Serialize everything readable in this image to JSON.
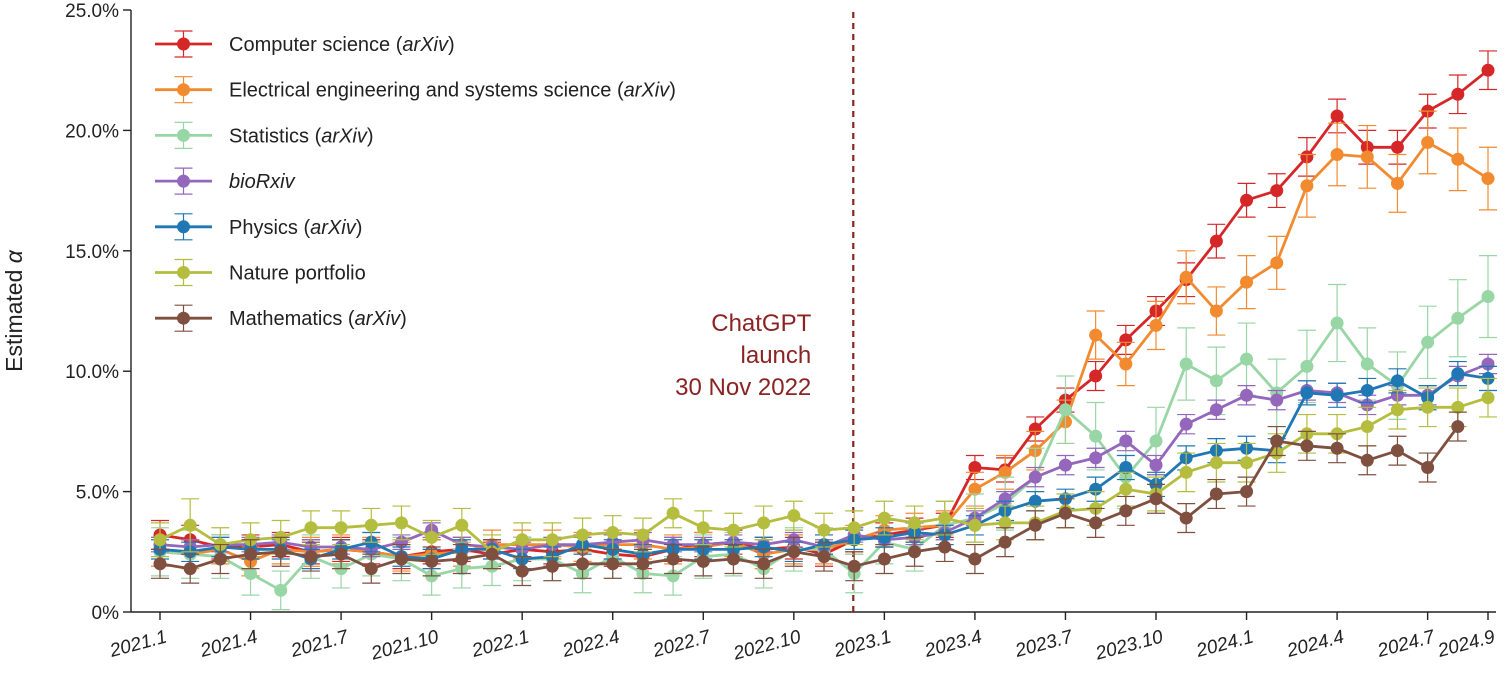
{
  "colors": {
    "computer_science": "#d62728",
    "eess": "#f28a30",
    "statistics": "#98d6a5",
    "biorxiv": "#9467bd",
    "physics": "#1f77b4",
    "nature": "#b5bd3f",
    "mathematics": "#7f4f3f",
    "annotation": "#8b2323",
    "axis": "#222222"
  },
  "chart_data": {
    "type": "line",
    "ylabel_prefix": "Estimated",
    "ylabel_symbol": "α",
    "ylim": [
      0,
      25
    ],
    "yticks": [
      "0%",
      "5.0%",
      "10.0%",
      "15.0%",
      "20.0%",
      "25.0%"
    ],
    "x_tick_labels": [
      "2021.1",
      "2021.4",
      "2021.7",
      "2021.10",
      "2022.1",
      "2022.4",
      "2022.7",
      "2022.10",
      "2023.1",
      "2023.4",
      "2023.7",
      "2023.10",
      "2024.1",
      "2024.4",
      "2024.7",
      "2024.9"
    ],
    "grid": false,
    "legend_position": "top-left",
    "annotation": {
      "lines": [
        "ChatGPT",
        "launch",
        "30 Nov 2022"
      ],
      "x_month_index": 22.97
    },
    "series": [
      {
        "key": "computer_science",
        "name_plain": "Computer science (",
        "name_italic": "arXiv",
        "name_close": ")",
        "values": [
          3.2,
          3.0,
          2.7,
          2.7,
          2.8,
          2.5,
          2.6,
          2.5,
          2.3,
          2.5,
          2.6,
          2.4,
          2.6,
          2.5,
          2.6,
          2.4,
          2.3,
          2.6,
          2.8,
          2.9,
          2.6,
          2.7,
          2.4,
          3.0,
          3.2,
          3.4,
          3.6,
          6.0,
          5.9,
          7.6,
          8.8,
          9.8,
          11.3,
          12.5,
          13.8,
          15.4,
          17.1,
          17.5,
          18.9,
          20.6,
          19.3,
          19.3,
          20.8,
          21.5,
          22.5
        ],
        "err": [
          0.6,
          0.6,
          0.5,
          0.5,
          0.5,
          0.5,
          0.5,
          0.5,
          0.5,
          0.5,
          0.5,
          0.5,
          0.5,
          0.5,
          0.5,
          0.5,
          0.5,
          0.5,
          0.5,
          0.5,
          0.5,
          0.5,
          0.5,
          0.5,
          0.5,
          0.5,
          0.5,
          0.5,
          0.5,
          0.5,
          0.5,
          0.6,
          0.6,
          0.6,
          0.7,
          0.7,
          0.7,
          0.7,
          0.8,
          0.7,
          0.7,
          0.7,
          0.7,
          0.8,
          0.8
        ]
      },
      {
        "key": "eess",
        "name_plain": "Electrical engineering and systems science (",
        "name_italic": "arXiv",
        "name_close": ")",
        "values": [
          2.5,
          2.4,
          2.6,
          2.1,
          2.6,
          2.5,
          2.6,
          2.5,
          2.3,
          2.4,
          2.5,
          2.8,
          2.8,
          2.8,
          2.7,
          2.8,
          2.8,
          2.6,
          2.7,
          2.9,
          2.4,
          2.6,
          2.6,
          3.0,
          3.4,
          3.5,
          3.6,
          5.1,
          5.8,
          6.7,
          7.9,
          11.5,
          10.3,
          11.9,
          13.9,
          12.5,
          13.7,
          14.5,
          17.7,
          19.0,
          18.9,
          17.8,
          19.5,
          18.8,
          18.0
        ],
        "err": [
          0.6,
          0.6,
          0.6,
          0.6,
          0.6,
          0.6,
          0.6,
          0.6,
          0.6,
          0.6,
          0.6,
          0.6,
          0.6,
          0.6,
          0.6,
          0.6,
          0.6,
          0.6,
          0.6,
          0.6,
          0.6,
          0.6,
          0.6,
          0.6,
          0.6,
          0.6,
          0.6,
          0.7,
          0.7,
          0.8,
          0.9,
          1.0,
          0.9,
          1.0,
          1.1,
          1.0,
          1.1,
          1.1,
          1.3,
          1.3,
          1.3,
          1.2,
          1.3,
          1.3,
          1.3
        ]
      },
      {
        "key": "statistics",
        "name_plain": "Statistics (",
        "name_italic": "arXiv",
        "name_close": ")",
        "values": [
          2.5,
          2.4,
          2.3,
          1.6,
          0.9,
          2.3,
          1.8,
          2.4,
          2.2,
          1.5,
          1.8,
          1.9,
          2.2,
          2.2,
          1.6,
          2.3,
          1.6,
          1.5,
          2.3,
          2.4,
          1.8,
          2.6,
          2.6,
          1.6,
          2.9,
          2.6,
          3.6,
          3.9,
          4.5,
          5.6,
          8.4,
          7.3,
          5.6,
          7.1,
          10.3,
          9.6,
          10.5,
          9.1,
          10.2,
          12.0,
          10.3,
          9.4,
          11.2,
          12.2,
          13.1
        ],
        "err": [
          1.0,
          1.0,
          0.9,
          0.9,
          0.8,
          0.9,
          0.8,
          0.9,
          0.9,
          0.8,
          0.8,
          0.8,
          0.9,
          0.9,
          0.8,
          0.9,
          0.8,
          0.8,
          0.9,
          0.9,
          0.8,
          0.9,
          0.9,
          0.8,
          0.9,
          0.9,
          1.0,
          1.0,
          1.1,
          1.2,
          1.4,
          1.4,
          1.3,
          1.4,
          1.5,
          1.4,
          1.5,
          1.4,
          1.5,
          1.6,
          1.5,
          1.4,
          1.5,
          1.6,
          1.7
        ]
      },
      {
        "key": "biorxiv",
        "name_plain": "",
        "name_italic": "bioRxiv",
        "name_close": "",
        "values": [
          2.8,
          2.7,
          2.8,
          2.8,
          2.9,
          2.7,
          2.7,
          2.6,
          2.9,
          3.4,
          2.8,
          2.7,
          2.6,
          2.8,
          2.8,
          2.9,
          3.0,
          2.8,
          2.8,
          2.9,
          2.8,
          3.0,
          2.7,
          3.2,
          3.0,
          3.1,
          3.3,
          3.9,
          4.7,
          5.6,
          6.1,
          6.4,
          7.1,
          6.1,
          7.8,
          8.4,
          9.0,
          8.8,
          9.2,
          9.1,
          8.6,
          9.0,
          9.0,
          9.8,
          10.3
        ],
        "err": [
          0.3,
          0.3,
          0.3,
          0.3,
          0.3,
          0.3,
          0.3,
          0.3,
          0.3,
          0.3,
          0.3,
          0.3,
          0.3,
          0.3,
          0.3,
          0.3,
          0.3,
          0.3,
          0.3,
          0.3,
          0.3,
          0.3,
          0.3,
          0.3,
          0.3,
          0.3,
          0.3,
          0.3,
          0.3,
          0.4,
          0.4,
          0.4,
          0.4,
          0.4,
          0.4,
          0.4,
          0.4,
          0.4,
          0.4,
          0.4,
          0.4,
          0.4,
          0.4,
          0.4,
          0.4
        ]
      },
      {
        "key": "physics",
        "name_plain": "Physics (",
        "name_italic": "arXiv",
        "name_close": ")",
        "values": [
          2.6,
          2.5,
          2.7,
          2.6,
          2.6,
          2.2,
          2.6,
          2.9,
          2.3,
          2.2,
          2.6,
          2.6,
          2.2,
          2.3,
          2.8,
          2.6,
          2.4,
          2.6,
          2.6,
          2.6,
          2.7,
          2.5,
          2.8,
          3.0,
          3.1,
          3.3,
          3.2,
          3.6,
          4.2,
          4.6,
          4.7,
          5.1,
          6.0,
          5.3,
          6.4,
          6.7,
          6.8,
          6.7,
          9.1,
          9.0,
          9.2,
          9.6,
          8.9,
          9.9,
          9.7
        ],
        "err": [
          0.4,
          0.4,
          0.4,
          0.4,
          0.4,
          0.4,
          0.4,
          0.4,
          0.4,
          0.4,
          0.4,
          0.4,
          0.4,
          0.4,
          0.4,
          0.4,
          0.4,
          0.4,
          0.4,
          0.4,
          0.4,
          0.4,
          0.4,
          0.4,
          0.4,
          0.4,
          0.4,
          0.4,
          0.4,
          0.4,
          0.4,
          0.5,
          0.5,
          0.5,
          0.5,
          0.5,
          0.5,
          0.5,
          0.5,
          0.5,
          0.5,
          0.5,
          0.5,
          0.5,
          0.5
        ]
      },
      {
        "key": "nature",
        "name_plain": "Nature portfolio",
        "name_italic": "",
        "name_close": "",
        "values": [
          3.0,
          3.6,
          2.8,
          3.0,
          3.1,
          3.5,
          3.5,
          3.6,
          3.7,
          3.1,
          3.6,
          2.5,
          3.0,
          3.0,
          3.2,
          3.3,
          3.2,
          4.1,
          3.5,
          3.4,
          3.7,
          4.0,
          3.4,
          3.5,
          3.9,
          3.7,
          3.9,
          3.6,
          3.7,
          3.7,
          4.2,
          4.3,
          5.1,
          4.9,
          5.8,
          6.2,
          6.2,
          6.6,
          7.4,
          7.4,
          7.7,
          8.4,
          8.5,
          8.5,
          8.9
        ],
        "err": [
          0.7,
          1.1,
          0.7,
          0.7,
          0.7,
          0.7,
          0.7,
          0.7,
          0.7,
          0.7,
          0.7,
          0.7,
          0.7,
          0.7,
          0.7,
          0.7,
          0.7,
          0.6,
          0.7,
          0.7,
          0.7,
          0.6,
          0.7,
          0.7,
          0.7,
          0.7,
          0.7,
          0.7,
          0.7,
          0.7,
          0.7,
          0.7,
          0.7,
          0.7,
          0.8,
          0.8,
          0.8,
          0.8,
          0.8,
          0.8,
          0.8,
          0.8,
          0.8,
          0.8,
          0.8
        ]
      },
      {
        "key": "mathematics",
        "name_plain": "Mathematics (",
        "name_italic": "arXiv",
        "name_close": ")",
        "values": [
          2.0,
          1.8,
          2.2,
          2.4,
          2.5,
          2.3,
          2.4,
          1.8,
          2.2,
          2.1,
          2.2,
          2.4,
          1.7,
          1.9,
          2.0,
          2.0,
          2.0,
          2.2,
          2.1,
          2.2,
          2.0,
          2.5,
          2.3,
          1.9,
          2.2,
          2.5,
          2.7,
          2.2,
          2.9,
          3.6,
          4.1,
          3.7,
          4.2,
          4.7,
          3.9,
          4.9,
          5.0,
          7.1,
          6.9,
          6.8,
          6.3,
          6.7,
          6.0,
          7.7
        ],
        "err": [
          0.6,
          0.6,
          0.6,
          0.6,
          0.6,
          0.6,
          0.6,
          0.6,
          0.6,
          0.6,
          0.6,
          0.6,
          0.6,
          0.6,
          0.6,
          0.6,
          0.6,
          0.6,
          0.6,
          0.6,
          0.6,
          0.6,
          0.6,
          0.6,
          0.6,
          0.6,
          0.6,
          0.6,
          0.6,
          0.6,
          0.6,
          0.6,
          0.6,
          0.6,
          0.6,
          0.6,
          0.6,
          0.6,
          0.6,
          0.6,
          0.6,
          0.6,
          0.6,
          0.6
        ],
        "x_offset": 0
      }
    ]
  }
}
